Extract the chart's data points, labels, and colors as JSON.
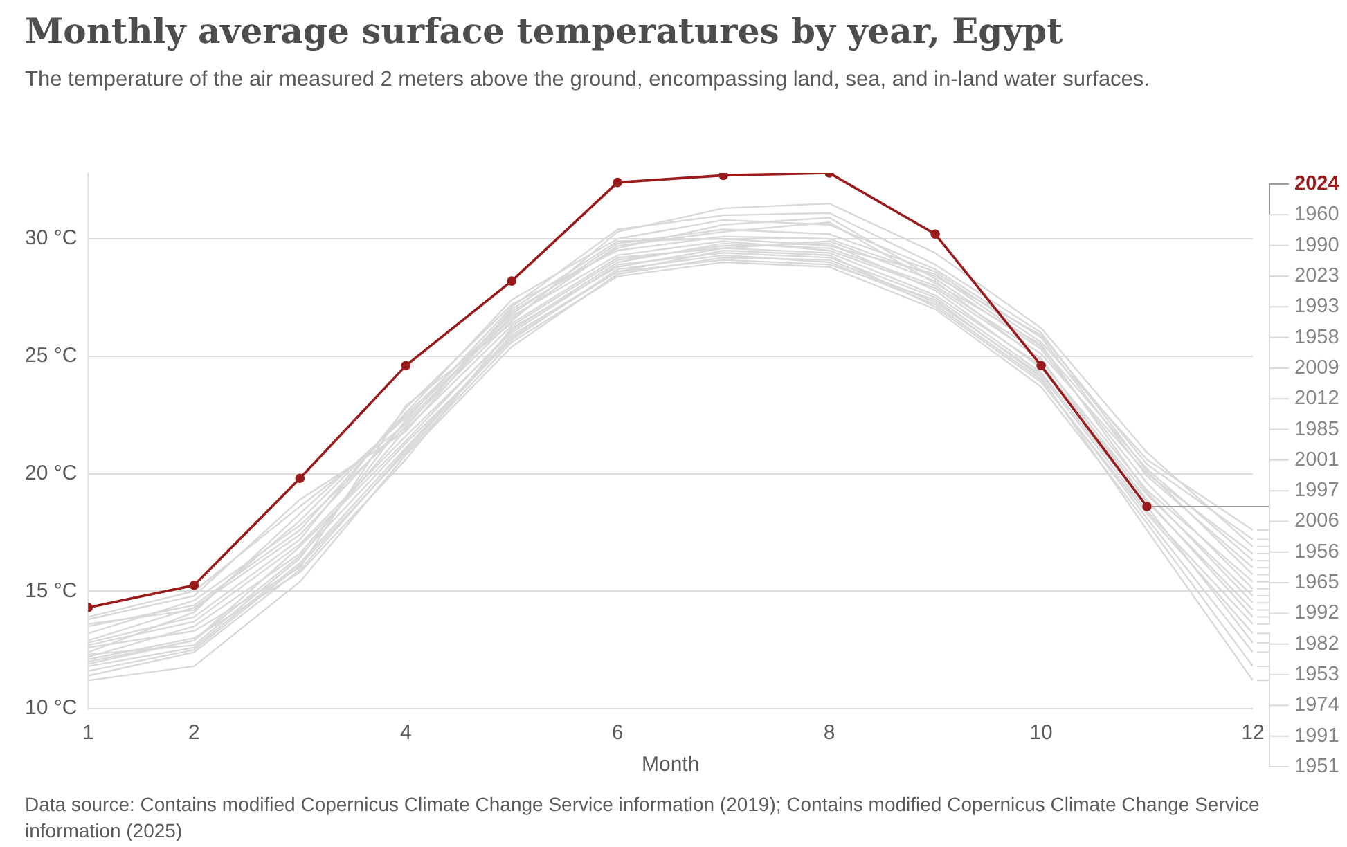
{
  "chart_data": {
    "type": "line",
    "title": "Monthly average surface temperatures by year, Egypt",
    "subtitle": "The temperature of the air measured 2 meters above the ground, encompassing land, sea, and in-land water surfaces.",
    "xlabel": "Month",
    "annotations": [
      "Data source: Contains modified Copernicus Climate Change Service information (2019); Contains modified Copernicus Climate Change Service information (2025)"
    ],
    "x": [
      1,
      2,
      3,
      4,
      5,
      6,
      7,
      8,
      9,
      10,
      11,
      12
    ],
    "xlim": [
      1,
      12
    ],
    "xticks": [
      1,
      2,
      4,
      6,
      8,
      10,
      12
    ],
    "ylim": [
      10,
      32.8
    ],
    "yticks": [
      {
        "value": 10,
        "label": "10 °C"
      },
      {
        "value": 15,
        "label": "15 °C"
      },
      {
        "value": 20,
        "label": "20 °C"
      },
      {
        "value": 25,
        "label": "25 °C"
      },
      {
        "value": 30,
        "label": "30 °C"
      }
    ],
    "grid": "y",
    "legend": "right",
    "series": [
      {
        "name": "2024",
        "color": "#9a1b1b",
        "marker": "circle",
        "values": [
          14.3,
          15.25,
          19.8,
          24.6,
          28.2,
          32.4,
          32.7,
          32.8,
          30.2,
          24.6,
          18.6,
          null
        ]
      },
      {
        "name": "1960",
        "color": "#d9d9d9",
        "values": [
          13.6,
          14.2,
          18.0,
          22.5,
          26.8,
          29.8,
          30.4,
          30.2,
          28.6,
          25.6,
          20.6,
          17.6
        ]
      },
      {
        "name": "1990",
        "color": "#d9d9d9",
        "values": [
          12.8,
          13.9,
          17.2,
          22.8,
          27.2,
          29.5,
          30.1,
          30.0,
          28.4,
          25.9,
          20.4,
          17.2
        ]
      },
      {
        "name": "2023",
        "color": "#d9d9d9",
        "values": [
          13.9,
          15.0,
          18.6,
          22.1,
          26.5,
          30.3,
          31.3,
          31.5,
          29.4,
          26.2,
          20.9,
          16.9
        ]
      },
      {
        "name": "1993",
        "color": "#d9d9d9",
        "values": [
          12.0,
          12.9,
          16.9,
          21.4,
          26.1,
          29.0,
          29.8,
          29.6,
          28.0,
          25.1,
          20.0,
          16.6
        ]
      },
      {
        "name": "1958",
        "color": "#d9d9d9",
        "values": [
          13.2,
          14.6,
          17.8,
          22.0,
          27.0,
          29.9,
          30.0,
          29.7,
          28.5,
          25.4,
          20.2,
          16.3
        ]
      },
      {
        "name": "2009",
        "color": "#d9d9d9",
        "values": [
          13.5,
          14.4,
          17.6,
          22.6,
          27.4,
          30.0,
          30.8,
          30.6,
          28.7,
          25.8,
          19.9,
          16.0
        ]
      },
      {
        "name": "2012",
        "color": "#d9d9d9",
        "values": [
          12.3,
          12.7,
          16.4,
          22.3,
          27.1,
          30.4,
          31.0,
          31.1,
          28.9,
          26.0,
          20.1,
          15.7
        ]
      },
      {
        "name": "1985",
        "color": "#d9d9d9",
        "values": [
          12.6,
          13.3,
          16.0,
          22.9,
          26.4,
          29.2,
          29.6,
          29.9,
          28.2,
          24.8,
          19.3,
          15.4
        ]
      },
      {
        "name": "2001",
        "color": "#d9d9d9",
        "values": [
          13.8,
          14.8,
          18.9,
          21.8,
          26.9,
          29.6,
          30.6,
          30.9,
          28.3,
          25.3,
          19.6,
          15.1
        ]
      },
      {
        "name": "1997",
        "color": "#d9d9d9",
        "values": [
          12.1,
          13.0,
          15.8,
          20.6,
          26.2,
          28.8,
          29.6,
          29.4,
          27.6,
          24.6,
          19.1,
          14.8
        ]
      },
      {
        "name": "2006",
        "color": "#d9d9d9",
        "values": [
          12.4,
          14.1,
          18.3,
          22.4,
          26.6,
          29.7,
          30.3,
          30.7,
          28.1,
          25.5,
          19.2,
          14.5
        ]
      },
      {
        "name": "1956",
        "color": "#d9d9d9",
        "values": [
          12.9,
          14.3,
          17.4,
          22.2,
          26.7,
          29.3,
          29.9,
          29.5,
          27.9,
          24.9,
          18.8,
          14.2
        ]
      },
      {
        "name": "1965",
        "color": "#d9d9d9",
        "values": [
          12.2,
          13.5,
          16.6,
          21.9,
          26.3,
          29.1,
          29.7,
          29.8,
          27.8,
          24.5,
          18.9,
          13.9
        ]
      },
      {
        "name": "1992",
        "color": "#d9d9d9",
        "values": [
          11.2,
          11.8,
          15.4,
          20.8,
          25.4,
          28.5,
          29.2,
          29.1,
          27.3,
          24.2,
          18.4,
          13.6
        ]
      },
      {
        "name": "1982",
        "color": "#d9d9d9",
        "values": [
          11.8,
          12.6,
          16.2,
          21.1,
          25.9,
          28.6,
          29.5,
          29.3,
          27.1,
          23.9,
          18.3,
          13.2
        ]
      },
      {
        "name": "1953",
        "color": "#d9d9d9",
        "values": [
          12.7,
          13.7,
          17.0,
          21.6,
          26.0,
          28.9,
          29.4,
          29.2,
          27.5,
          24.3,
          18.6,
          12.8
        ]
      },
      {
        "name": "1974",
        "color": "#d9d9d9",
        "values": [
          11.9,
          12.9,
          16.5,
          21.3,
          25.7,
          28.7,
          29.3,
          29.0,
          27.2,
          24.0,
          18.1,
          12.4
        ]
      },
      {
        "name": "1991",
        "color": "#d9d9d9",
        "values": [
          11.6,
          12.5,
          16.1,
          20.9,
          25.6,
          28.4,
          29.0,
          28.8,
          27.0,
          23.7,
          17.9,
          11.8
        ]
      },
      {
        "name": "1951",
        "color": "#d9d9d9",
        "values": [
          11.4,
          12.4,
          15.9,
          21.0,
          25.8,
          28.6,
          29.1,
          28.9,
          27.4,
          24.1,
          17.6,
          11.2
        ]
      }
    ]
  }
}
